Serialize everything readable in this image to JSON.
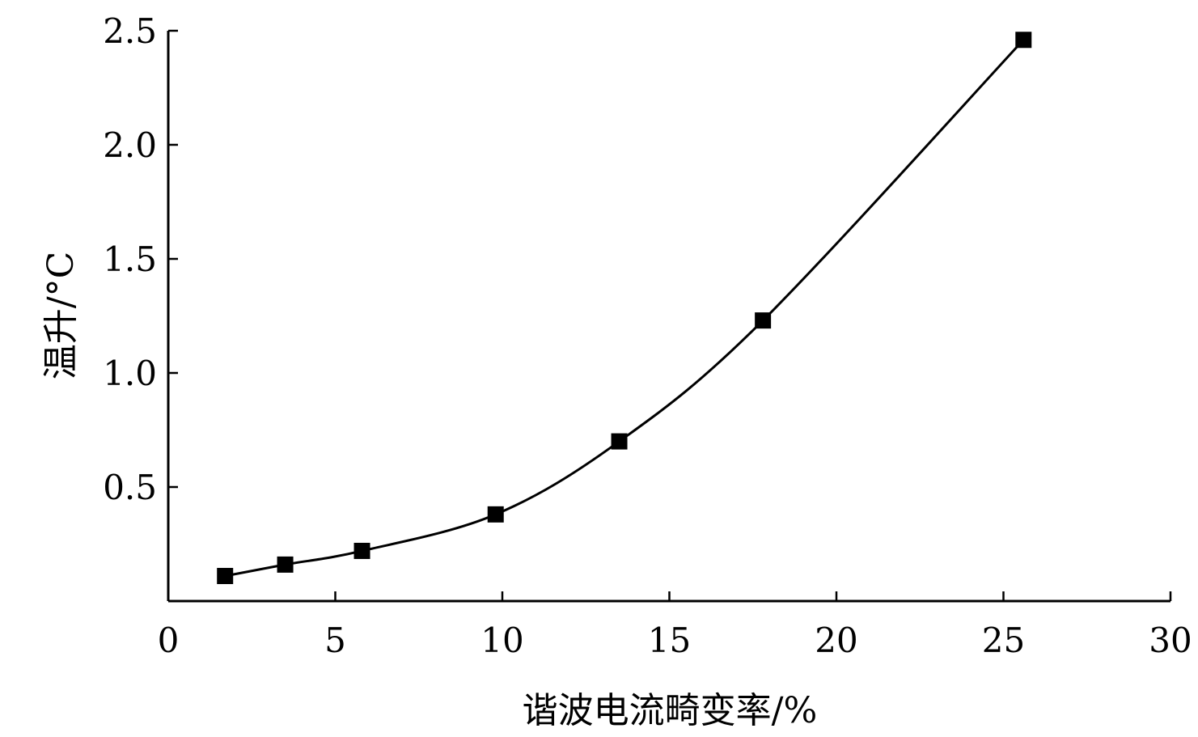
{
  "chart_data": {
    "type": "line",
    "title": "",
    "xlabel": "谐波电流畸变率/%",
    "ylabel": "温升/°C",
    "xlim": [
      0,
      30
    ],
    "ylim": [
      0,
      2.5
    ],
    "xticks": [
      0,
      5,
      10,
      15,
      20,
      25,
      30
    ],
    "xtick_labels": [
      "0",
      "5",
      "10",
      "15",
      "20",
      "25",
      "30"
    ],
    "yticks": [
      0.5,
      1.0,
      1.5,
      2.0,
      2.5
    ],
    "ytick_labels": [
      "0.5",
      "1.0",
      "1.5",
      "2.0",
      "2.5"
    ],
    "grid": false,
    "legend": "none",
    "marker": "square",
    "color": "#000000",
    "series": [
      {
        "x": [
          1.7,
          3.5,
          5.8,
          9.8,
          13.5,
          17.8,
          25.6
        ],
        "y": [
          0.11,
          0.16,
          0.22,
          0.38,
          0.7,
          1.23,
          2.46
        ]
      }
    ]
  }
}
